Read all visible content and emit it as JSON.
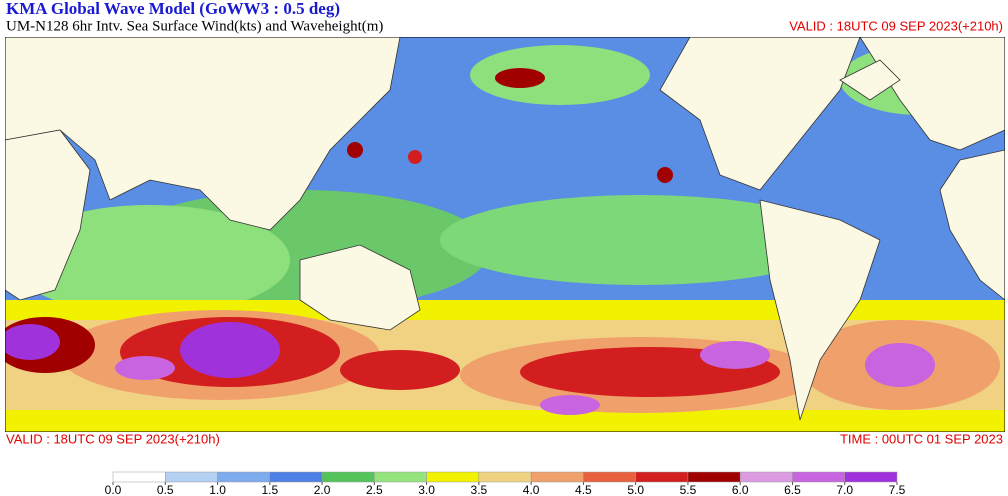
{
  "header": {
    "title": "KMA  Global Wave Model (GoWW3 : 0.5 deg)",
    "subtitle": "UM-N128  6hr Intv. Sea Surface Wind(kts) and Waveheight(m)",
    "valid_top": "VALID : 18UTC 09 SEP 2023(+210h)"
  },
  "footer": {
    "valid": "VALID : 18UTC 09 SEP 2023(+210h)",
    "time": "TIME : 00UTC 01 SEP 2023"
  },
  "colorbar": {
    "ticks": [
      {
        "value": 0,
        "label": "0.0"
      },
      0.5,
      {
        "value": 1,
        "label": "1.0"
      },
      1.5,
      {
        "value": 2,
        "label": "2.0"
      },
      2.5,
      {
        "value": 3,
        "label": "3.0"
      },
      3.5,
      {
        "value": 4,
        "label": "4.0"
      },
      4.5,
      {
        "value": 5,
        "label": "5.0"
      },
      5.5,
      {
        "value": 6,
        "label": "6.0"
      },
      6.5,
      {
        "value": 7,
        "label": "7.0"
      },
      7.5
    ],
    "colors": [
      "#ffffff",
      "#b4d0f2",
      "#7eaaee",
      "#4c80e4",
      "#54c45a",
      "#96e47e",
      "#f2f200",
      "#f0d282",
      "#f0a06a",
      "#e8603e",
      "#d21e1e",
      "#a00000",
      "#dc9ae0",
      "#c864e0",
      "#a032dc"
    ]
  }
}
